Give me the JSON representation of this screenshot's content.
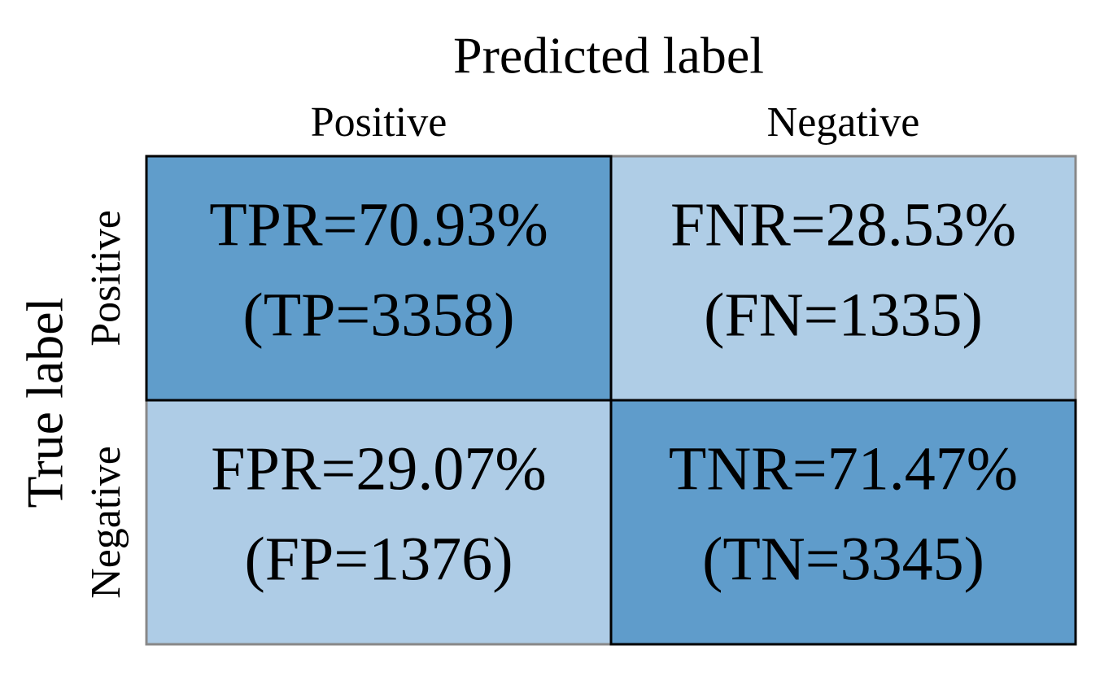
{
  "chart_data": {
    "type": "heatmap",
    "x_label": "Predicted label",
    "y_label": "True label",
    "x_categories": [
      "Positive",
      "Negative"
    ],
    "y_categories": [
      "Positive",
      "Negative"
    ],
    "values": [
      [
        70.93,
        28.53
      ],
      [
        29.07,
        71.47
      ]
    ],
    "value_labels": [
      [
        "TPR=70.93%",
        "FNR=28.53%"
      ],
      [
        "FPR=29.07%",
        "TNR=71.47%"
      ]
    ],
    "counts": [
      [
        3358,
        1335
      ],
      [
        1376,
        3345
      ]
    ],
    "count_labels": [
      [
        "(TP=3358)",
        "(FN=1335)"
      ],
      [
        "(FP=1376)",
        "(TN=3345)"
      ]
    ],
    "cmap": [
      "#afcde6",
      "#5f9ccb"
    ]
  }
}
